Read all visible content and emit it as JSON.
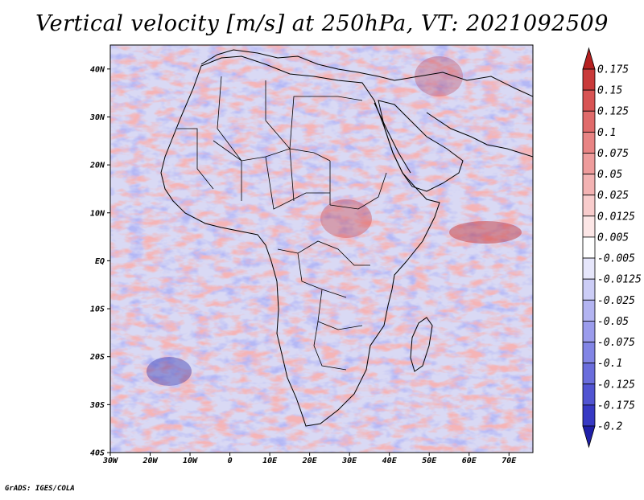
{
  "title": "Vertical velocity [m/s] at 250hPa, VT: 2021092509",
  "credit": "GrADS: IGES/COLA",
  "map": {
    "lon_range": [
      -30,
      76
    ],
    "lat_range": [
      -40,
      45
    ],
    "lat_ticks": [
      {
        "value": 40,
        "label": "40N"
      },
      {
        "value": 30,
        "label": "30N"
      },
      {
        "value": 20,
        "label": "20N"
      },
      {
        "value": 10,
        "label": "10N"
      },
      {
        "value": 0,
        "label": "EQ"
      },
      {
        "value": -10,
        "label": "10S"
      },
      {
        "value": -20,
        "label": "20S"
      },
      {
        "value": -30,
        "label": "30S"
      },
      {
        "value": -40,
        "label": "40S"
      }
    ],
    "lon_ticks": [
      {
        "value": -30,
        "label": "30W"
      },
      {
        "value": -20,
        "label": "20W"
      },
      {
        "value": -10,
        "label": "10W"
      },
      {
        "value": 0,
        "label": "0"
      },
      {
        "value": 10,
        "label": "10E"
      },
      {
        "value": 20,
        "label": "20E"
      },
      {
        "value": 30,
        "label": "30E"
      },
      {
        "value": 40,
        "label": "40E"
      },
      {
        "value": 50,
        "label": "50E"
      },
      {
        "value": 60,
        "label": "60E"
      },
      {
        "value": 70,
        "label": "70E"
      }
    ]
  },
  "colorbar": {
    "labels": [
      "0.175",
      "0.15",
      "0.125",
      "0.1",
      "0.075",
      "0.05",
      "0.025",
      "0.0125",
      "0.005",
      "-0.005",
      "-0.0125",
      "-0.025",
      "-0.05",
      "-0.075",
      "-0.1",
      "-0.125",
      "-0.175",
      "-0.2"
    ],
    "colors": [
      "#b52020",
      "#c93a3a",
      "#d85454",
      "#e06b6b",
      "#e88484",
      "#ee9c9c",
      "#f3b3b3",
      "#f8cccc",
      "#fce6e6",
      "#ffffff",
      "#e6e6fb",
      "#cccdf6",
      "#b3b4f1",
      "#9b9cec",
      "#8285e5",
      "#6a6ddc",
      "#5154d2",
      "#3739c4",
      "#1f1fa8"
    ]
  }
}
